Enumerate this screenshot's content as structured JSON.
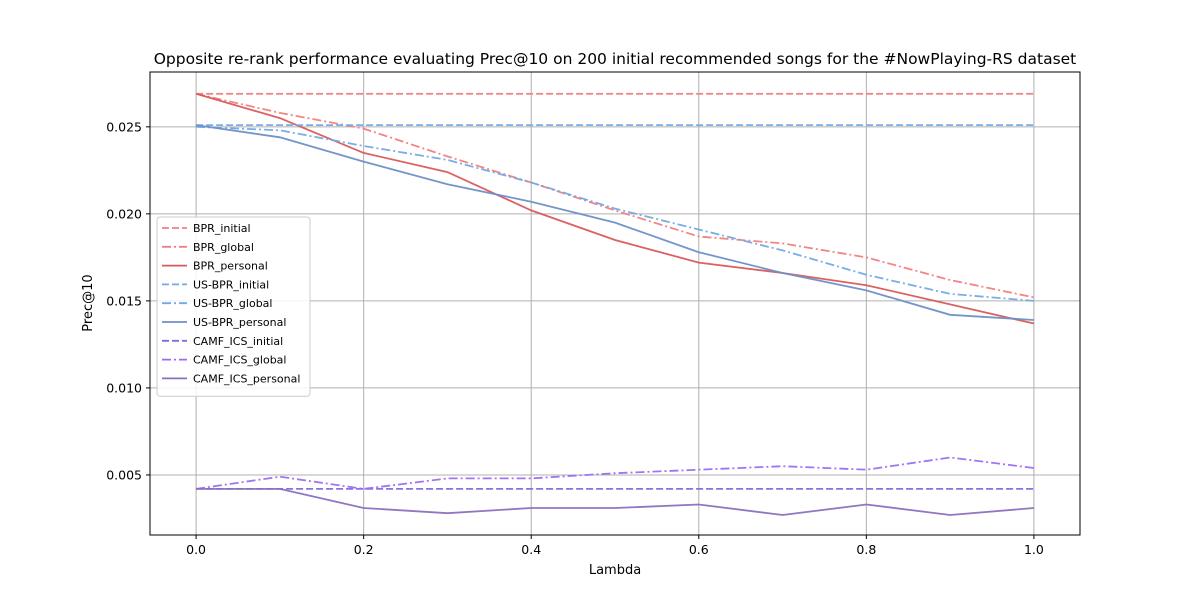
{
  "chart_data": {
    "type": "line",
    "title": "Opposite re-rank performance evaluating Prec@10 on 200 initial recommended songs for the #NowPlaying-RS dataset",
    "xlabel": "Lambda",
    "ylabel": "Prec@10",
    "xlim": [
      -0.055,
      1.055
    ],
    "ylim": [
      0.00155,
      0.02815
    ],
    "xticks": [
      0.0,
      0.2,
      0.4,
      0.6,
      0.8,
      1.0
    ],
    "xtick_labels": [
      "0.0",
      "0.2",
      "0.4",
      "0.6",
      "0.8",
      "1.0"
    ],
    "yticks": [
      0.005,
      0.01,
      0.015,
      0.02,
      0.025
    ],
    "ytick_labels": [
      "0.005",
      "0.010",
      "0.015",
      "0.020",
      "0.025"
    ],
    "grid": true,
    "legend_position": "center-left",
    "x": [
      0.0,
      0.1,
      0.2,
      0.3,
      0.4,
      0.5,
      0.6,
      0.7,
      0.8,
      0.9,
      1.0
    ],
    "series": [
      {
        "name": "BPR_initial",
        "color": "#f08080",
        "dash": "dashed",
        "values": [
          0.0269,
          0.0269,
          0.0269,
          0.0269,
          0.0269,
          0.0269,
          0.0269,
          0.0269,
          0.0269,
          0.0269,
          0.0269
        ]
      },
      {
        "name": "BPR_global",
        "color": "#f08080",
        "dash": "dashdot",
        "values": [
          0.0269,
          0.0258,
          0.0249,
          0.0233,
          0.0218,
          0.0202,
          0.0187,
          0.0183,
          0.0175,
          0.0162,
          0.0152
        ]
      },
      {
        "name": "BPR_personal",
        "color": "#d9595b",
        "dash": "solid",
        "values": [
          0.0269,
          0.0255,
          0.0235,
          0.0224,
          0.0202,
          0.0185,
          0.0172,
          0.0166,
          0.0159,
          0.0148,
          0.0137
        ]
      },
      {
        "name": "US-BPR_initial",
        "color": "#73a9e6",
        "dash": "dashed",
        "values": [
          0.0251,
          0.0251,
          0.0251,
          0.0251,
          0.0251,
          0.0251,
          0.0251,
          0.0251,
          0.0251,
          0.0251,
          0.0251
        ]
      },
      {
        "name": "US-BPR_global",
        "color": "#73a9e6",
        "dash": "dashdot",
        "values": [
          0.025,
          0.0248,
          0.0239,
          0.0231,
          0.0218,
          0.0203,
          0.0191,
          0.0179,
          0.0165,
          0.0154,
          0.015
        ]
      },
      {
        "name": "US-BPR_personal",
        "color": "#6e8fc6",
        "dash": "solid",
        "values": [
          0.0251,
          0.0244,
          0.023,
          0.0217,
          0.0207,
          0.0195,
          0.0178,
          0.0166,
          0.0156,
          0.0142,
          0.0139
        ]
      },
      {
        "name": "CAMF_ICS_initial",
        "color": "#7f6ce0",
        "dash": "dashed",
        "values": [
          0.0042,
          0.0042,
          0.0042,
          0.0042,
          0.0042,
          0.0042,
          0.0042,
          0.0042,
          0.0042,
          0.0042,
          0.0042
        ]
      },
      {
        "name": "CAMF_ICS_global",
        "color": "#9b6ef0",
        "dash": "dashdot",
        "values": [
          0.0042,
          0.0049,
          0.0042,
          0.0048,
          0.0048,
          0.0051,
          0.0053,
          0.0055,
          0.0053,
          0.006,
          0.0054
        ]
      },
      {
        "name": "CAMF_ICS_personal",
        "color": "#8a70c0",
        "dash": "solid",
        "values": [
          0.0042,
          0.0042,
          0.0031,
          0.0028,
          0.0031,
          0.0031,
          0.0033,
          0.0027,
          0.0033,
          0.0027,
          0.0031
        ]
      }
    ]
  }
}
